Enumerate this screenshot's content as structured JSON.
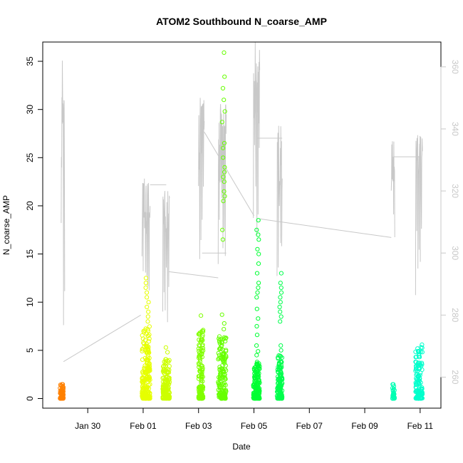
{
  "chart_data": {
    "type": "scatter",
    "title": "ATOM2 Southbound N_coarse_AMP",
    "xlabel": "Date",
    "ylabel": "N_coarse_AMP",
    "x_tick_labels": [
      "Jan 30",
      "Feb 01",
      "Feb 03",
      "Feb 05",
      "Feb 07",
      "Feb 09",
      "Feb 11"
    ],
    "x_ticks": [
      "2018-01-30",
      "2018-02-01",
      "2018-02-03",
      "2018-02-05",
      "2018-02-07",
      "2018-02-09",
      "2018-02-11"
    ],
    "xlim": [
      "2018-01-28 09:00",
      "2018-02-11 18:00"
    ],
    "ylim": [
      -1,
      37
    ],
    "y_ticks": [
      0,
      5,
      10,
      15,
      20,
      25,
      30,
      35
    ],
    "y2lim": [
      250,
      368
    ],
    "y2_ticks": [
      260,
      280,
      300,
      320,
      340,
      360
    ],
    "grid": false,
    "legend": "none",
    "point_clusters": [
      {
        "start": "2018-01-29 00:00",
        "end": "2018-01-29 03:00",
        "ymax": 1.6,
        "count": 70,
        "color": "#ff8000",
        "highs": []
      },
      {
        "start": "2018-01-31 23:00",
        "end": "2018-02-01 06:00",
        "ymax": 7.5,
        "count": 220,
        "color": "#e6ff00",
        "highs": [
          8.0,
          8.5,
          9.0,
          9.5,
          10.0,
          10.5,
          11.0,
          11.5,
          12.0,
          12.5
        ]
      },
      {
        "start": "2018-02-01 17:00",
        "end": "2018-02-01 23:00",
        "ymax": 4.2,
        "count": 140,
        "color": "#ccff00",
        "highs": [
          4.8,
          5.3
        ]
      },
      {
        "start": "2018-02-03 00:00",
        "end": "2018-02-03 04:00",
        "ymax": 7.2,
        "count": 140,
        "color": "#80ff00",
        "highs": [
          8.6
        ]
      },
      {
        "start": "2018-02-03 17:00",
        "end": "2018-02-04 00:00",
        "ymax": 6.5,
        "count": 160,
        "color": "#66ff00",
        "highs": [
          7.2,
          7.8,
          8.7,
          16.5,
          17.5,
          20.5,
          21.0,
          21.5,
          22.5,
          23.0,
          23.5,
          24.0,
          25.0,
          26.0,
          26.5,
          28.7,
          29.8,
          31.0,
          32.2,
          33.4,
          35.9
        ]
      },
      {
        "start": "2018-02-04 23:30",
        "end": "2018-02-05 05:00",
        "ymax": 4.0,
        "count": 160,
        "color": "#00ff33",
        "highs": [
          4.5,
          4.9,
          5.5,
          6.6,
          7.5,
          8.3,
          9.3,
          10.5,
          11.0,
          11.5,
          12.0,
          13.0,
          14.0,
          15.0,
          15.5,
          16.5,
          17.0,
          17.5,
          18.5
        ]
      },
      {
        "start": "2018-02-05 20:00",
        "end": "2018-02-06 00:30",
        "ymax": 4.5,
        "count": 140,
        "color": "#00ff4d",
        "highs": [
          5.0,
          5.5,
          8.0,
          8.5,
          9.0,
          9.5,
          10.0,
          10.5,
          11.0,
          11.5,
          12.0,
          13.0
        ]
      },
      {
        "start": "2018-02-10 00:00",
        "end": "2018-02-10 02:00",
        "ymax": 1.5,
        "count": 30,
        "color": "#00ffb3",
        "highs": []
      },
      {
        "start": "2018-02-10 20:00",
        "end": "2018-02-11 02:00",
        "ymax": 5.6,
        "count": 120,
        "color": "#00ffcc",
        "highs": []
      }
    ],
    "secondary_line": {
      "color": "#c8c8c8",
      "bursts": [
        {
          "start": "2018-01-29 01:00",
          "end": "2018-01-29 04:00",
          "min": 265,
          "max": 362
        },
        {
          "start": "2018-01-31 23:00",
          "end": "2018-02-01 06:00",
          "min": 282,
          "max": 324
        },
        {
          "start": "2018-02-01 17:00",
          "end": "2018-02-01 23:00",
          "min": 276,
          "max": 320
        },
        {
          "start": "2018-02-03 00:00",
          "end": "2018-02-03 05:00",
          "min": 298,
          "max": 350
        },
        {
          "start": "2018-02-03 17:00",
          "end": "2018-02-04 00:00",
          "min": 290,
          "max": 348
        },
        {
          "start": "2018-02-04 23:30",
          "end": "2018-02-05 05:00",
          "min": 305,
          "max": 368
        },
        {
          "start": "2018-02-05 20:00",
          "end": "2018-02-06 00:30",
          "min": 292,
          "max": 341
        },
        {
          "start": "2018-02-09 23:00",
          "end": "2018-02-10 02:00",
          "min": 305,
          "max": 336
        },
        {
          "start": "2018-02-10 20:00",
          "end": "2018-02-11 02:00",
          "min": 284,
          "max": 338
        }
      ],
      "connectors": [
        [
          "2018-01-29 03:00",
          265,
          "2018-01-31 22:00",
          280
        ],
        [
          "2018-02-01 06:00",
          322,
          "2018-02-01 20:00",
          322
        ],
        [
          "2018-02-01 22:00",
          294,
          "2018-02-03 17:00",
          292
        ],
        [
          "2018-02-03 03:00",
          300,
          "2018-02-04 00:00",
          300
        ],
        [
          "2018-02-03 05:00",
          339,
          "2018-02-05 00:00",
          312
        ],
        [
          "2018-02-05 03:00",
          337,
          "2018-02-06 00:30",
          337
        ],
        [
          "2018-02-05 05:00",
          311,
          "2018-02-09 23:00",
          305
        ],
        [
          "2018-02-10 01:00",
          331,
          "2018-02-11 00:00",
          331
        ]
      ]
    }
  }
}
